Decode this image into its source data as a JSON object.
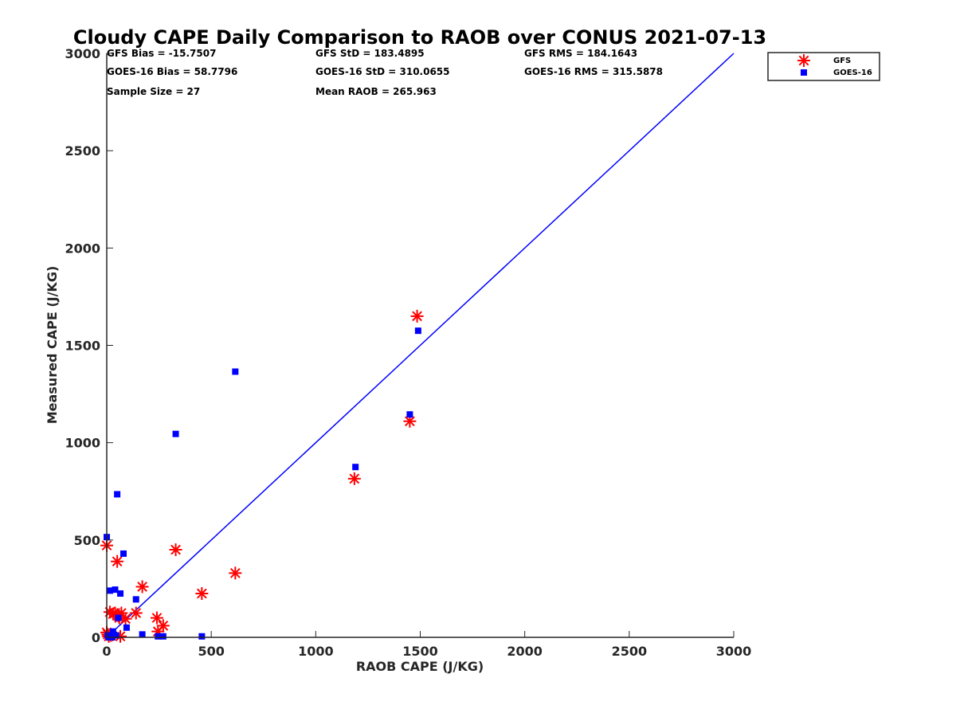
{
  "chart_data": {
    "type": "scatter",
    "title": "Cloudy CAPE Daily Comparison to RAOB over CONUS 2021-07-13",
    "xlabel": "RAOB CAPE (J/KG)",
    "ylabel": "Measured CAPE (J/KG)",
    "xlim": [
      0,
      3000
    ],
    "ylim": [
      0,
      3000
    ],
    "xticks": [
      "0",
      "500",
      "1000",
      "1500",
      "2000",
      "2500",
      "3000"
    ],
    "yticks": [
      "0",
      "500",
      "1000",
      "1500",
      "2000",
      "2500",
      "3000"
    ],
    "grid": false,
    "legend_position": "top-right, outside plot",
    "reference_line": {
      "x": [
        0,
        3000
      ],
      "y": [
        0,
        3000
      ],
      "color": "#0000ff"
    },
    "stats": [
      [
        "GFS Bias = -15.7507",
        "GFS StD = 183.4895",
        "GFS RMS = 184.1643"
      ],
      [
        "GOES-16 Bias = 58.7796",
        "GOES-16 StD = 310.0655",
        "GOES-16 RMS = 315.5878"
      ],
      [
        "Sample Size = 27",
        "Mean RAOB = 265.963",
        ""
      ]
    ],
    "series": [
      {
        "name": "GFS",
        "marker": "asterisk",
        "color": "#ff0000",
        "points": [
          [
            0,
            472
          ],
          [
            0,
            25
          ],
          [
            5,
            15
          ],
          [
            10,
            5
          ],
          [
            15,
            130
          ],
          [
            20,
            10
          ],
          [
            30,
            120
          ],
          [
            40,
            125
          ],
          [
            50,
            390
          ],
          [
            55,
            110
          ],
          [
            60,
            100
          ],
          [
            65,
            5
          ],
          [
            70,
            125
          ],
          [
            90,
            95
          ],
          [
            140,
            125
          ],
          [
            170,
            260
          ],
          [
            240,
            100
          ],
          [
            245,
            30
          ],
          [
            270,
            60
          ],
          [
            330,
            450
          ],
          [
            455,
            225
          ],
          [
            615,
            330
          ],
          [
            1185,
            815
          ],
          [
            1450,
            1110
          ],
          [
            1485,
            1650
          ]
        ]
      },
      {
        "name": "GOES-16",
        "marker": "square",
        "color": "#0000ff",
        "points": [
          [
            0,
            515
          ],
          [
            5,
            10
          ],
          [
            10,
            0
          ],
          [
            15,
            240
          ],
          [
            25,
            0
          ],
          [
            30,
            30
          ],
          [
            40,
            245
          ],
          [
            45,
            10
          ],
          [
            50,
            735
          ],
          [
            55,
            100
          ],
          [
            65,
            225
          ],
          [
            80,
            430
          ],
          [
            95,
            50
          ],
          [
            140,
            195
          ],
          [
            170,
            15
          ],
          [
            245,
            5
          ],
          [
            270,
            5
          ],
          [
            330,
            1045
          ],
          [
            455,
            5
          ],
          [
            615,
            1365
          ],
          [
            1190,
            875
          ],
          [
            1450,
            1145
          ],
          [
            1490,
            1575
          ]
        ]
      }
    ]
  }
}
